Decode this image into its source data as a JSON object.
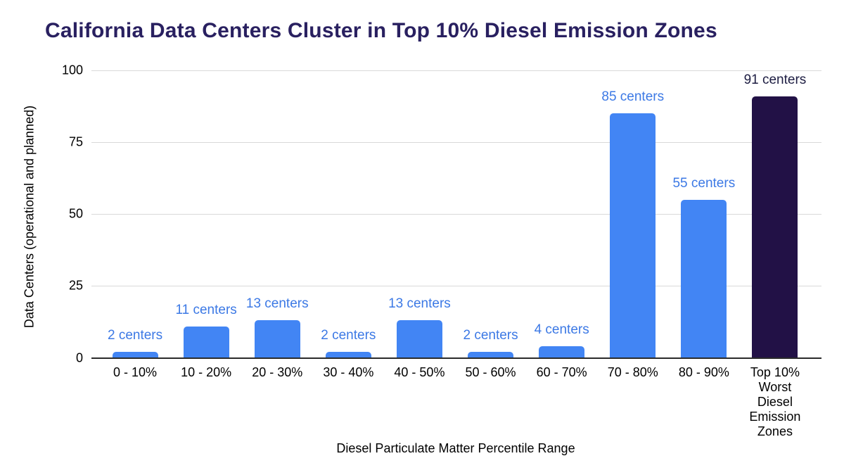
{
  "title": "California Data Centers Cluster in Top 10% Diesel Emission Zones",
  "colors": {
    "title": "#292060",
    "bar": "#4285F4",
    "bar_highlight": "#221146",
    "value_label": "#3c79e5",
    "value_label_highlight": "#1d1d42",
    "gridline": "#d9d9d9",
    "axis_line": "#2b2b2b",
    "tick_text": "#000000"
  },
  "chart_data": {
    "type": "bar",
    "title": "California Data Centers Cluster in Top 10% Diesel Emission Zones",
    "xlabel": "Diesel Particulate Matter Percentile Range",
    "ylabel": "Data Centers (operational and planned)",
    "ylim": [
      0,
      100
    ],
    "yticks": [
      0,
      25,
      50,
      75,
      100
    ],
    "grid": true,
    "legend": "none",
    "categories": [
      "0 - 10%",
      "10 - 20%",
      "20 - 30%",
      "30 - 40%",
      "40 - 50%",
      "50 - 60%",
      "60 - 70%",
      "70 - 80%",
      "80 - 90%",
      "Top 10% Worst Diesel Emission Zones"
    ],
    "values": [
      2,
      11,
      13,
      2,
      13,
      2,
      4,
      85,
      55,
      91
    ],
    "bar_labels": [
      "2 centers",
      "11 centers",
      "13 centers",
      "2 centers",
      "13 centers",
      "2 centers",
      "4 centers",
      "85 centers",
      "55 centers",
      "91 centers"
    ],
    "highlight_index": 9
  }
}
